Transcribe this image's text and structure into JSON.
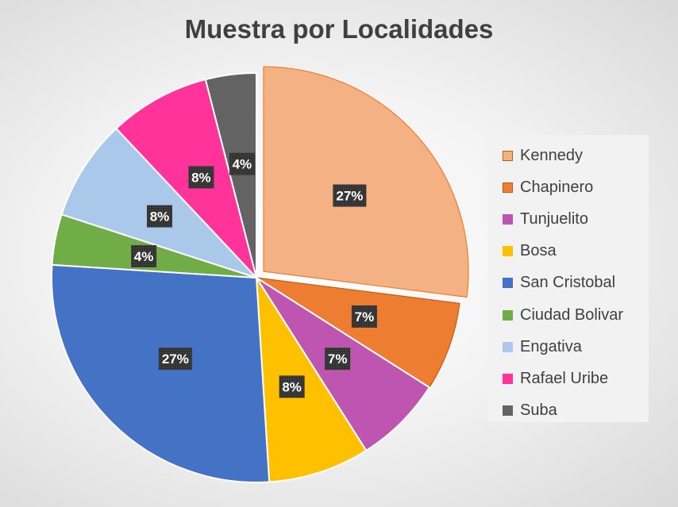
{
  "chart_data": {
    "type": "pie",
    "title": "Muestra por Localidades",
    "categories": [
      "Kennedy",
      "Chapinero",
      "Tunjuelito",
      "Bosa",
      "San Cristobal",
      "Ciudad Bolivar",
      "Engativa",
      "Rafael Uribe",
      "Suba"
    ],
    "values": [
      27,
      7,
      7,
      8,
      27,
      4,
      8,
      8,
      4
    ],
    "data_labels": [
      "27%",
      "7%",
      "7%",
      "8%",
      "27%",
      "4%",
      "8%",
      "8%",
      "4%"
    ],
    "colors": [
      "#F4B183",
      "#ED7D31",
      "#BE55B0",
      "#FFC000",
      "#4472C4",
      "#70AD47",
      "#A9C8EA",
      "#FF3399",
      "#636363"
    ],
    "exploded": [
      "Kennedy"
    ],
    "legend_position": "right"
  }
}
